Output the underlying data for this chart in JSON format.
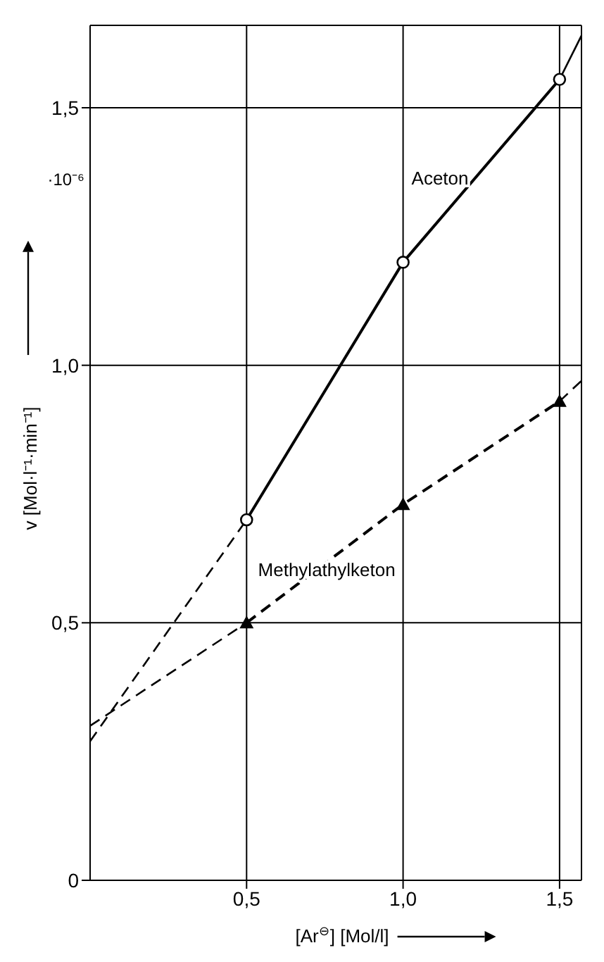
{
  "chart_data": {
    "type": "line",
    "xlabel": "[Ar$^{⊖}$] [Mol/l]",
    "ylabel": "v [Mol·l⁻¹·min⁻¹]",
    "annotations": [
      "·10⁻⁶"
    ],
    "xlim": [
      0,
      1.57
    ],
    "ylim": [
      0,
      1.66
    ],
    "xticks": [
      {
        "value": 0.5,
        "label": "0,5"
      },
      {
        "value": 1.0,
        "label": "1,0"
      },
      {
        "value": 1.5,
        "label": "1,5"
      }
    ],
    "yticks": [
      0,
      {
        "value": 0.5,
        "label": "0,5"
      },
      {
        "value": 1.0,
        "label": "1,0"
      },
      {
        "value": 1.5,
        "label": "1,5"
      }
    ],
    "grid": true,
    "series": [
      {
        "name": "Aceton",
        "color": "#000000",
        "x": [
          0.5,
          1.0,
          1.5
        ],
        "values": [
          0.7,
          1.2,
          1.555
        ],
        "marker": "circle",
        "line_style": "solid"
      },
      {
        "name": "Methylathylketon",
        "color": "#000000",
        "x": [
          0.5,
          1.0,
          1.5
        ],
        "values": [
          0.5,
          0.73,
          0.93
        ],
        "marker": "triangle",
        "line_style": "dashed"
      },
      {
        "color": "#000000",
        "x": [
          0,
          0.5
        ],
        "values": [
          0.27,
          0.7
        ],
        "marker": "none",
        "line_style": "dashed"
      },
      {
        "color": "#000000",
        "x": [
          1.5,
          1.57
        ],
        "values": [
          1.555,
          1.64
        ],
        "marker": "none",
        "line_style": "solid"
      },
      {
        "color": "#000000",
        "x": [
          0,
          0.5
        ],
        "values": [
          0.3,
          0.5
        ],
        "marker": "none",
        "line_style": "dashed"
      },
      {
        "color": "#000000",
        "x": [
          1.5,
          1.57
        ],
        "values": [
          0.93,
          0.97
        ],
        "marker": "none",
        "line_style": "dashed"
      }
    ]
  }
}
